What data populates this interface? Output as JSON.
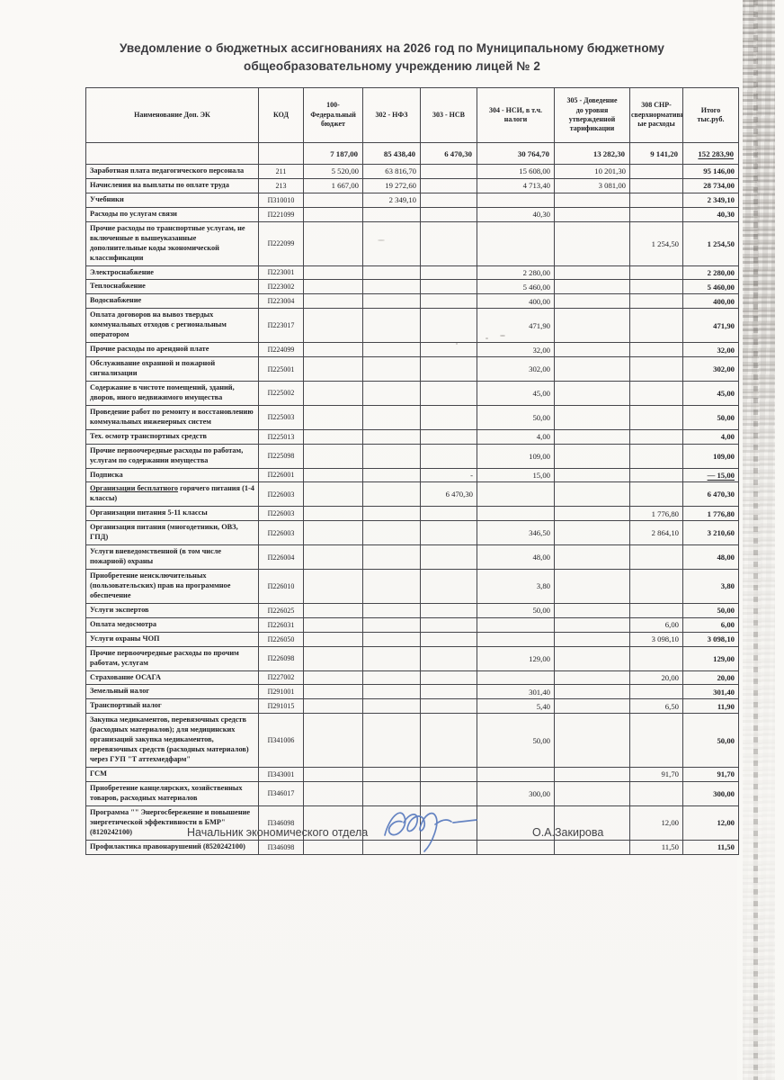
{
  "title": "Уведомление о бюджетных ассигнованиях на 2026 год по Муниципальному бюджетному общеобразовательному учреждению лицей № 2",
  "table": {
    "headers": [
      "Наименование Доп. ЭК",
      "КОД",
      "100-\nФедеральный\nбюджет",
      "302 - НФЗ",
      "303 - НСВ",
      "304  - НСИ, в т.ч.\nналоги",
      "305 - Доведение\nдо уровня\nутвержденной\nтарификации",
      "308 СНР-\nсверхнормативн\nые расходы",
      "Итого\nтыс.руб."
    ],
    "totals": {
      "name": "",
      "code": "",
      "c100": "7 187,00",
      "c302": "85 438,40",
      "c303": "6 470,30",
      "c304": "30 764,70",
      "c305": "13 282,30",
      "c308": "9 141,20",
      "itogo": "152 283,90"
    },
    "rows": [
      {
        "name": "Заработная плата педагогического персонала",
        "code": "211",
        "c100": "5 520,00",
        "c302": "63 816,70",
        "c303": "",
        "c304": "15 608,00",
        "c305": "10 201,30",
        "c308": "",
        "itogo": "95 146,00"
      },
      {
        "name": "Начисления на выплаты по оплате труда",
        "code": "213",
        "c100": "1 667,00",
        "c302": "19 272,60",
        "c303": "",
        "c304": "4 713,40",
        "c305": "3 081,00",
        "c308": "",
        "itogo": "28 734,00"
      },
      {
        "name": "Учебники",
        "code": "П310010",
        "c100": "",
        "c302": "2 349,10",
        "c303": "",
        "c304": "",
        "c305": "",
        "c308": "",
        "itogo": "2 349,10"
      },
      {
        "name": "Расходы по услугам связи",
        "code": "П221099",
        "c100": "",
        "c302": "",
        "c303": "",
        "c304": "40,30",
        "c305": "",
        "c308": "",
        "itogo": "40,30"
      },
      {
        "name": "Прочие расходы по транспортные услугам, не включенные в вышеуказанные дополнительные коды экономической классификации",
        "code": "П222099",
        "c100": "",
        "c302": "",
        "c303": "",
        "c304": "",
        "c305": "",
        "c308": "1 254,50",
        "itogo": "1 254,50"
      },
      {
        "name": "Электроснабжение",
        "code": "П223001",
        "c100": "",
        "c302": "",
        "c303": "",
        "c304": "2 280,00",
        "c305": "",
        "c308": "",
        "itogo": "2 280,00"
      },
      {
        "name": "Теплоснабжение",
        "code": "П223002",
        "c100": "",
        "c302": "",
        "c303": "",
        "c304": "5 460,00",
        "c305": "",
        "c308": "",
        "itogo": "5 460,00"
      },
      {
        "name": "Водоснабжение",
        "code": "П223004",
        "c100": "",
        "c302": "",
        "c303": "",
        "c304": "400,00",
        "c305": "",
        "c308": "",
        "itogo": "400,00"
      },
      {
        "name": "Оплата договоров на вывоз твердых коммунальных отходов с региональным оператором",
        "code": "П223017",
        "c100": "",
        "c302": "",
        "c303": "",
        "c304": "471,90",
        "c305": "",
        "c308": "",
        "itogo": "471,90"
      },
      {
        "name": "Прочие расходы по арендной плате",
        "code": "П224099",
        "c100": "",
        "c302": "",
        "c303": "",
        "c304": "32,00",
        "c305": "",
        "c308": "",
        "itogo": "32,00"
      },
      {
        "name": "Обслуживание охранной и пожарной сигнализации",
        "code": "П225001",
        "c100": "",
        "c302": "",
        "c303": "",
        "c304": "302,00",
        "c305": "",
        "c308": "",
        "itogo": "302,00"
      },
      {
        "name": "Содержание в чистоте помещений, зданий, дворов, иного недвижимого имущества",
        "code": "П225002",
        "c100": "",
        "c302": "",
        "c303": "",
        "c304": "45,00",
        "c305": "",
        "c308": "",
        "itogo": "45,00"
      },
      {
        "name": "Проведение работ по ремонту и восстановлению коммунальных инженерных систем",
        "code": "П225003",
        "c100": "",
        "c302": "",
        "c303": "",
        "c304": "50,00",
        "c305": "",
        "c308": "",
        "itogo": "50,00"
      },
      {
        "name": "Тех. осмотр транспортных средств",
        "code": "П225013",
        "c100": "",
        "c302": "",
        "c303": "",
        "c304": "4,00",
        "c305": "",
        "c308": "",
        "itogo": "4,00"
      },
      {
        "name": "Прочие первоочередные расходы по работам, услугам по содержании имущества",
        "code": "П225098",
        "c100": "",
        "c302": "",
        "c303": "",
        "c304": "109,00",
        "c305": "",
        "c308": "",
        "itogo": "109,00"
      },
      {
        "name": "Подписка",
        "code": "П226001",
        "c100": "",
        "c302": "",
        "c303": "-",
        "c304": "15,00",
        "c305": "",
        "c308": "",
        "itogo": "—  15,00",
        "itogo_underline": true
      },
      {
        "name_u": "Организации бесплатного",
        "name_rest": " горячего питания (1-4 классы)",
        "name": "Организации бесплатного горячего питания (1-4 классы)",
        "code": "П226003",
        "c100": "",
        "c302": "",
        "c303": "6 470,30",
        "c304": "",
        "c305": "",
        "c308": "",
        "itogo": "6 470,30"
      },
      {
        "name": "Организации питания 5-11 классы",
        "code": "П226003",
        "c100": "",
        "c302": "",
        "c303": "",
        "c304": "",
        "c305": "",
        "c308": "1 776,80",
        "itogo": "1 776,80"
      },
      {
        "name": "Организация питания (многодетники, ОВЗ, ГПД)",
        "code": "П226003",
        "c100": "",
        "c302": "",
        "c303": "",
        "c304": "346,50",
        "c305": "",
        "c308": "2 864,10",
        "itogo": "3 210,60"
      },
      {
        "name": "Услуги вневедомственной (в том числе пожарной) охраны",
        "code": "П226004",
        "c100": "",
        "c302": "",
        "c303": "",
        "c304": "48,00",
        "c305": "",
        "c308": "",
        "itogo": "48,00"
      },
      {
        "name": "Приобретение неисключительных (пользовательских) прав на программное обеспечение",
        "code": "П226010",
        "c100": "",
        "c302": "",
        "c303": "",
        "c304": "3,80",
        "c305": "",
        "c308": "",
        "itogo": "3,80"
      },
      {
        "name": "Услуги экспертов",
        "code": "П226025",
        "c100": "",
        "c302": "",
        "c303": "",
        "c304": "50,00",
        "c305": "",
        "c308": "",
        "itogo": "50,00"
      },
      {
        "name": "Оплата медосмотра",
        "code": "П226031",
        "c100": "",
        "c302": "",
        "c303": "",
        "c304": "",
        "c305": "",
        "c308": "6,00",
        "itogo": "6,00"
      },
      {
        "name": "Услуги охраны ЧОП",
        "code": "П226050",
        "c100": "",
        "c302": "",
        "c303": "",
        "c304": "",
        "c305": "",
        "c308": "3 098,10",
        "itogo": "3 098,10"
      },
      {
        "name": "Прочие первоочередные расходы по прочим работам, услугам",
        "code": "П226098",
        "c100": "",
        "c302": "",
        "c303": "",
        "c304": "129,00",
        "c305": "",
        "c308": "",
        "itogo": "129,00"
      },
      {
        "name": "Страхование ОСАГА",
        "code": "П227002",
        "c100": "",
        "c302": "",
        "c303": "",
        "c304": "",
        "c305": "",
        "c308": "20,00",
        "itogo": "20,00"
      },
      {
        "name": "Земельный налог",
        "code": "П291001",
        "c100": "",
        "c302": "",
        "c303": "",
        "c304": "301,40",
        "c305": "",
        "c308": "",
        "itogo": "301,40"
      },
      {
        "name": "Транспортный налог",
        "code": "П291015",
        "c100": "",
        "c302": "",
        "c303": "",
        "c304": "5,40",
        "c305": "",
        "c308": "6,50",
        "itogo": "11,90"
      },
      {
        "name": "Закупка медикаментов, перевязочных средств (расходных материалов); для медицинских организаций закупка медикаментов, перевязочных средств (расходных материалов) через ГУП \"Т аттехмедфарм\"",
        "code": "П341006",
        "c100": "",
        "c302": "",
        "c303": "",
        "c304": "50,00",
        "c305": "",
        "c308": "",
        "itogo": "50,00"
      },
      {
        "name": "ГСМ",
        "code": "П343001",
        "c100": "",
        "c302": "",
        "c303": "",
        "c304": "",
        "c305": "",
        "c308": "91,70",
        "itogo": "91,70"
      },
      {
        "name": "Приобретение канцелярских, хозяйственных товаров, расходных материалов",
        "code": "П346017",
        "c100": "",
        "c302": "",
        "c303": "",
        "c304": "300,00",
        "c305": "",
        "c308": "",
        "itogo": "300,00"
      },
      {
        "name": "Программа \"\" Энергосбережение и повышение энергетической эффективности в БМР\" (8120242100)",
        "code": "П346098",
        "c100": "",
        "c302": "",
        "c303": "",
        "c304": "",
        "c305": "",
        "c308": "12,00",
        "itogo": "12,00"
      },
      {
        "name": "Профилактика правонарушений (8520242100)",
        "code": "П346098",
        "c100": "",
        "c302": "",
        "c303": "",
        "c304": "",
        "c305": "",
        "c308": "11,50",
        "itogo": "11,50"
      }
    ]
  },
  "signature": {
    "position": "Начальник экономического отдела",
    "name": "О.А.Закирова",
    "ink_color": "#5577bd"
  },
  "colors": {
    "text": "#222226",
    "border": "#46464b",
    "title": "#3c3c40"
  }
}
